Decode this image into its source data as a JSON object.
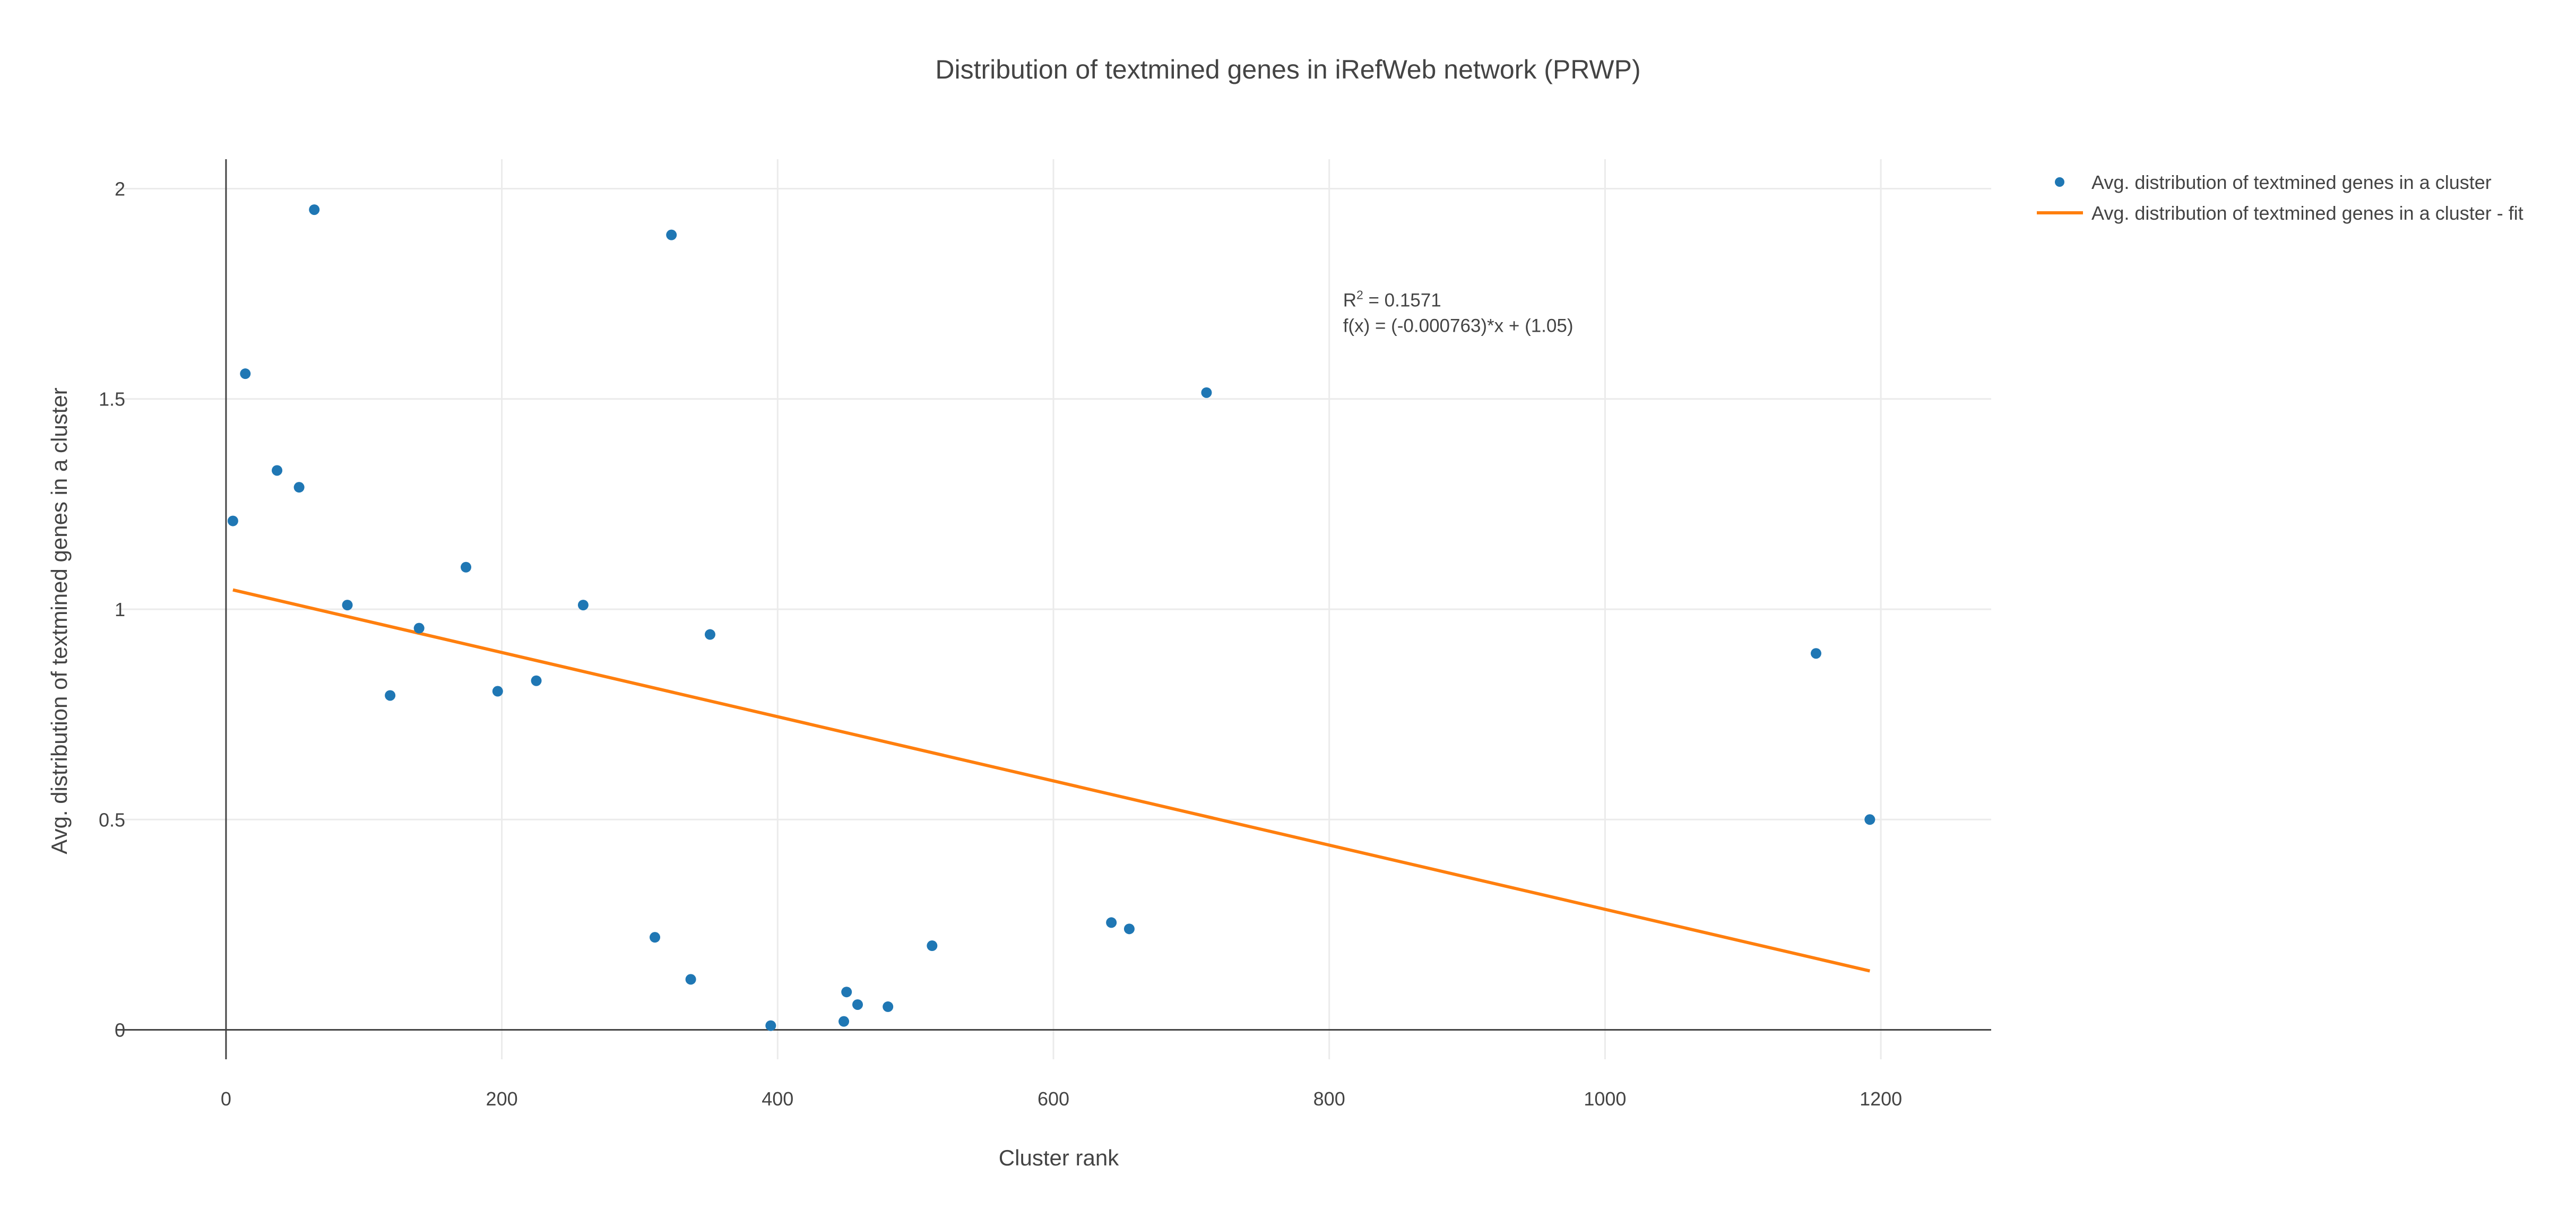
{
  "chart_data": {
    "type": "scatter",
    "title": "Distribution of textmined genes in iRefWeb network (PRWP)",
    "xlabel": "Cluster rank",
    "ylabel": "Avg. distribution of textmined genes in a cluster",
    "xlim": [
      -80,
      1280
    ],
    "ylim": [
      -0.07,
      2.07
    ],
    "x_ticks": [
      0,
      200,
      400,
      600,
      800,
      1000,
      1200
    ],
    "x_tick_labels": [
      "0",
      "200",
      "400",
      "600",
      "800",
      "1000",
      "1200"
    ],
    "y_ticks": [
      0,
      0.5,
      1,
      1.5,
      2
    ],
    "y_tick_labels": [
      "0",
      "0.5",
      "1",
      "1.5",
      "2"
    ],
    "grid": true,
    "legend_position": "top-right",
    "series": [
      {
        "name": "Avg. distribution of textmined genes in a cluster",
        "mode": "markers",
        "color": "#1f77b4",
        "points": [
          [
            5,
            1.21
          ],
          [
            14,
            1.56
          ],
          [
            37,
            1.33
          ],
          [
            53,
            1.29
          ],
          [
            64,
            1.95
          ],
          [
            88,
            1.01
          ],
          [
            119,
            0.795
          ],
          [
            140,
            0.955
          ],
          [
            174,
            1.1
          ],
          [
            197,
            0.805
          ],
          [
            225,
            0.83
          ],
          [
            259,
            1.01
          ],
          [
            311,
            0.22
          ],
          [
            323,
            1.89
          ],
          [
            337,
            0.12
          ],
          [
            351,
            0.94
          ],
          [
            395,
            0.01
          ],
          [
            448,
            0.02
          ],
          [
            450,
            0.09
          ],
          [
            458,
            0.06
          ],
          [
            480,
            0.055
          ],
          [
            512,
            0.2
          ],
          [
            642,
            0.255
          ],
          [
            655,
            0.24
          ],
          [
            711,
            1.515
          ],
          [
            1153,
            0.895
          ],
          [
            1192,
            0.5
          ]
        ]
      },
      {
        "name": "Avg. distribution of textmined genes in a cluster - fit",
        "mode": "line",
        "color": "#ff7f0e",
        "points": [
          [
            5,
            1.046
          ],
          [
            1192,
            0.14
          ]
        ]
      }
    ],
    "annotation": {
      "line1_prefix": "R",
      "line1_sup": "2",
      "line1_suffix": " = 0.1571",
      "line2": "f(x) = (-0.000763)*x + (1.05)",
      "x": 810,
      "y": 1.72
    }
  }
}
